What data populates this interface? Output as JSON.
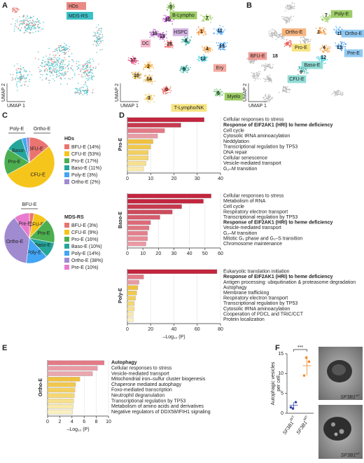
{
  "panels": [
    "A",
    "B",
    "C",
    "D",
    "E",
    "F"
  ],
  "umap_axes": [
    "UMAP 1",
    "UMAP 2"
  ],
  "umap_a": {
    "legend": [
      "HDs",
      "MDS-RS"
    ],
    "clusters": [
      "0",
      "1",
      "2",
      "3",
      "4",
      "5",
      "6",
      "7",
      "8",
      "9",
      "10",
      "11",
      "12",
      "13",
      "14",
      "15",
      "16",
      "17",
      "18",
      "19"
    ],
    "cell_types": [
      "B-Lympho",
      "HSPC",
      "DC",
      "Ery",
      "Myelo",
      "T-Lympho/NK"
    ]
  },
  "umap_b": {
    "clusters": [
      "7",
      "1",
      "11",
      "13",
      "4",
      "12",
      "9",
      "18"
    ],
    "cell_types": [
      "Poly-E",
      "Ortho-E",
      "Ortho-E",
      "Pro-E",
      "Pre-E",
      "Baso-E",
      "CFU-E",
      "BFU-E"
    ]
  },
  "chart_data": [
    {
      "type": "pie",
      "title": "HDs",
      "categories": [
        "BFU-E",
        "CFU-E",
        "Pro-E",
        "Baso-E",
        "Poly-E",
        "Ortho-E"
      ],
      "values": [
        14,
        53,
        17,
        11,
        3,
        2
      ],
      "value_labels": [
        "BFU-E (14%)",
        "CFU-E (53%)",
        "Pro-E (17%)",
        "Baso-E (11%)",
        "Poly-E (3%)",
        "Ortho-E (2%)"
      ],
      "colors": [
        "#ea7470",
        "#f6c51b",
        "#4caf50",
        "#26a69a",
        "#42a5f5",
        "#a08ad0"
      ]
    },
    {
      "type": "pie",
      "title": "MDS-RS",
      "categories": [
        "BFU-E",
        "CFU-E",
        "Pro-E",
        "Baso-E",
        "Poly-E",
        "Ortho-E",
        "Pre-E"
      ],
      "values": [
        3,
        9,
        16,
        10,
        14,
        38,
        10
      ],
      "value_labels": [
        "BFU-E (3%)",
        "CFU-E (9%)",
        "Pro-E (16%)",
        "Baso-E (10%)",
        "Poly-E (14%)",
        "Ortho-E (38%)",
        "Pre-E (10%)"
      ],
      "colors": [
        "#ea7470",
        "#f6c51b",
        "#4caf50",
        "#26a69a",
        "#42a5f5",
        "#a08ad0",
        "#e87bd0"
      ]
    },
    {
      "type": "barh",
      "title": "Pro-E",
      "bold": 1,
      "categories": [
        "Cellular responses to stress",
        "Response of EIF2AK1 (HRI) to heme deficiency",
        "Cell cycle",
        "Cytosolic tRNA aminoacylation",
        "Neddylation",
        "Transcriptional regulation by TP53",
        "DNA repair",
        "Cellular senescence",
        "Vesicle-mediated transport",
        "G₂–M transition"
      ],
      "values": [
        33,
        23,
        16,
        13,
        11,
        10,
        9,
        9,
        8,
        7
      ],
      "colors": [
        "#c3253e",
        "#c73a4f",
        "#e47a86",
        "#e99ba4",
        "#f0c13f",
        "#f1c84e",
        "#f3cf60",
        "#f5d772",
        "#f7e08e",
        "#f9e9ab"
      ],
      "xlim": [
        0,
        40
      ],
      "xticks": [
        0,
        10,
        20,
        30,
        40
      ],
      "grid": true
    },
    {
      "type": "barh",
      "title": "Baso-E",
      "bold": 5,
      "categories": [
        "Cellular responses to stress",
        "Metabolism of RNA",
        "Cell cycle",
        "Respiratory electron transport",
        "Transcriptional regulation by TP53",
        "Response of EIF2AK1 (HRI) to heme deficiency",
        "Vesicle-mediated transport",
        "G₂–M transition",
        "Mitotic G₁ phase and G₁–S transition",
        "Chromosome maintenance"
      ],
      "values": [
        54,
        49,
        35,
        29,
        21,
        15,
        14,
        13,
        13,
        12
      ],
      "colors": [
        "#c3253e",
        "#c3253e",
        "#c73a4f",
        "#cc4a5c",
        "#d65b6c",
        "#dc6a79",
        "#e07582",
        "#e4808c",
        "#e88b96",
        "#ec98a2"
      ],
      "xlim": [
        0,
        60
      ],
      "xticks": [
        0,
        10,
        20,
        30,
        40,
        50,
        60
      ],
      "grid": true
    },
    {
      "type": "barh",
      "title": "Poly-E",
      "bold": 1,
      "xlabel": "–Log₁₀ (P)",
      "categories": [
        "Eukaryotic translation initiation",
        "Response of EIF2AK1 (HRI) to heme deficiency",
        "Antigen processing: ubiquitination & proteasome degradation",
        "Autophagy",
        "Membrane trafficking",
        "Respiratory electron transport",
        "Transcriptional regulation by TP53",
        "Cytosolic tRNA aminoacylation",
        "Cooperation of PDCL and TRiC/CCT",
        "Protein localization"
      ],
      "values": [
        77,
        14,
        10,
        9,
        8,
        7,
        6,
        6,
        5,
        5
      ],
      "colors": [
        "#c3253e",
        "#e47a86",
        "#e99ba4",
        "#f0c13f",
        "#f1c84e",
        "#f3cf60",
        "#f5d772",
        "#f7e08e",
        "#f9e9ab",
        "#faefc0"
      ],
      "xlim": [
        0,
        80
      ],
      "xticks": [
        0,
        20,
        40,
        60,
        80
      ],
      "grid": true
    },
    {
      "type": "barh",
      "title": "Ortho-E",
      "bold": 0,
      "xlabel": "–Log₁₀ (P)",
      "categories": [
        "Autophagy",
        "Cellular responses to stress",
        "Vesicle-mediated transport",
        "Mitochondrial iron–sulfur cluster biogenesis",
        "Chaperone mediated autophagy",
        "Foxo-mediated transcription",
        "Neutrophil degranulation",
        "Transcriptional regulation by TP53",
        "Metabolism of amino acids and derivatives",
        "Negative regulators of DDX58/IFIH1 signaling"
      ],
      "values": [
        9.3,
        8.2,
        7.4,
        5.3,
        4.6,
        4.5,
        4.4,
        4.3,
        4.2,
        4.1
      ],
      "colors": [
        "#e47a86",
        "#e99ba4",
        "#eaa7ae",
        "#f0c13f",
        "#f1c84e",
        "#f3cf60",
        "#f5d772",
        "#f7e08e",
        "#f9e9ab",
        "#faefc0"
      ],
      "xlim": [
        0,
        10
      ],
      "xticks": [
        0,
        2,
        4,
        6,
        8,
        10
      ],
      "grid": true
    },
    {
      "type": "dot",
      "ylabel": [
        "Autophagic vesicles",
        "per cell"
      ],
      "gene": "SF3B1",
      "categories": [
        "WT",
        "MT"
      ],
      "values": [
        [
          1.5,
          2.8,
          1.2
        ],
        [
          9.5,
          13,
          14
        ]
      ],
      "means": [
        2,
        12
      ],
      "errors": [
        0.8,
        2.5
      ],
      "colors": [
        "#3949ab",
        "#ef8a2a"
      ],
      "ylim": [
        0,
        15
      ],
      "yticks": [
        0,
        5,
        10,
        15
      ],
      "annotation": "***"
    }
  ]
}
